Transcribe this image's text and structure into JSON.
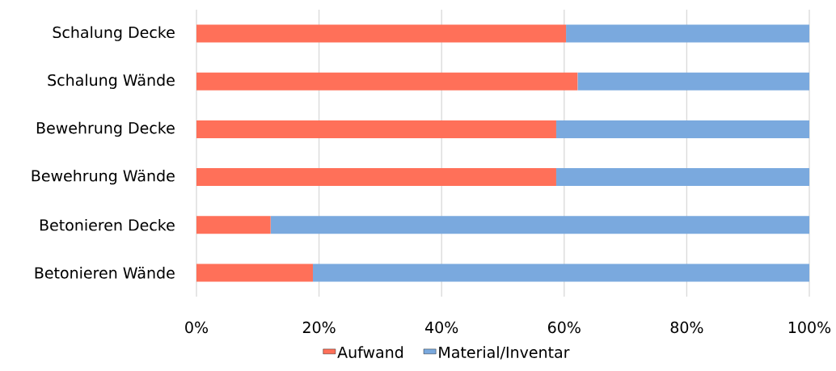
{
  "chart_data": {
    "type": "bar",
    "orientation": "horizontal",
    "stacked": true,
    "categories": [
      "Schalung Decke",
      "Schalung Wände",
      "Bewehrung Decke",
      "Bewehrung Wände",
      "Betonieren Decke",
      "Betonieren Wände"
    ],
    "series": [
      {
        "name": "Aufwand",
        "color": "#ff7059",
        "values": [
          60.3,
          62.2,
          58.7,
          58.7,
          12.1,
          19.0
        ]
      },
      {
        "name": "Material/Inventar",
        "color": "#7aa9de",
        "values": [
          39.7,
          37.8,
          41.3,
          41.3,
          87.9,
          81.0
        ]
      }
    ],
    "xlim": [
      0,
      100
    ],
    "xticks": [
      {
        "value": 0,
        "label": "0%"
      },
      {
        "value": 20,
        "label": "20%"
      },
      {
        "value": 40,
        "label": "40%"
      },
      {
        "value": 60,
        "label": "60%"
      },
      {
        "value": 80,
        "label": "80%"
      },
      {
        "value": 100,
        "label": "100%"
      }
    ],
    "grid": "x",
    "legend": "bottom"
  }
}
